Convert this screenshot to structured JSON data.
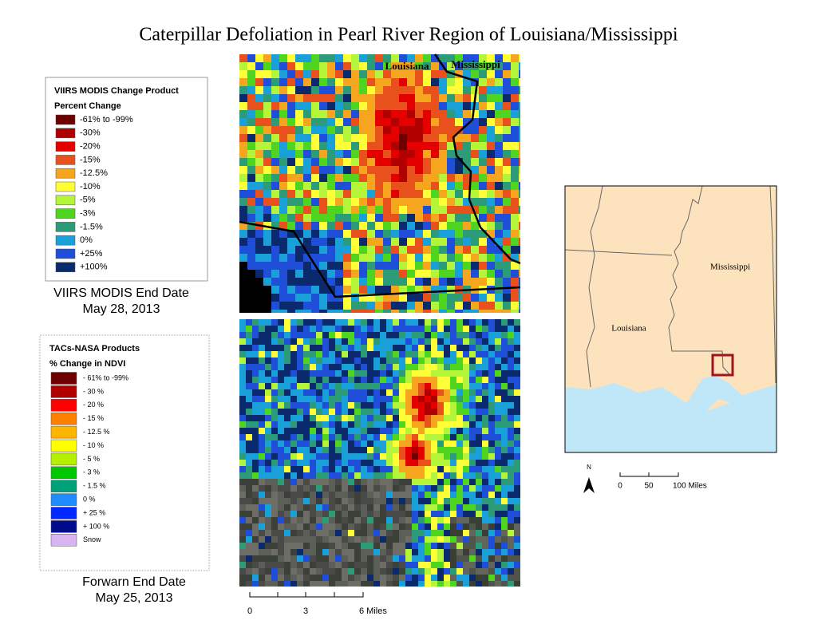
{
  "title": "Caterpillar Defoliation in Pearl River Region of Louisiana/Mississippi",
  "legend_viirs": {
    "title": "VIIRS MODIS Change Product",
    "subtitle": "Percent Change",
    "items": [
      {
        "label": "-61% to -99%",
        "color": "#6e0000"
      },
      {
        "label": "-30%",
        "color": "#b00000"
      },
      {
        "label": "-20%",
        "color": "#e50000"
      },
      {
        "label": "-15%",
        "color": "#e8501c"
      },
      {
        "label": "-12.5%",
        "color": "#f5a51e"
      },
      {
        "label": "-10%",
        "color": "#ffff38"
      },
      {
        "label": "-5%",
        "color": "#b4f53a"
      },
      {
        "label": "-3%",
        "color": "#4fd41f"
      },
      {
        "label": "-1.5%",
        "color": "#2c9c78"
      },
      {
        "label": "0%",
        "color": "#1aa0d8"
      },
      {
        "label": "+25%",
        "color": "#1f4fd8"
      },
      {
        "label": "+100%",
        "color": "#0b2a6e"
      }
    ]
  },
  "caption_viirs": [
    "VIIRS MODIS End Date",
    "May 28, 2013"
  ],
  "map_viirs": {
    "labels": [
      "Louisiana",
      "Mississippi"
    ]
  },
  "legend_forwarn": {
    "title": "TACs-NASA Products",
    "subtitle": "% Change in NDVI",
    "items": [
      {
        "label": "- 61% to -99%",
        "color": "#6e0000"
      },
      {
        "label": "- 30 %",
        "color": "#b00000"
      },
      {
        "label": "- 20 %",
        "color": "#ff0000"
      },
      {
        "label": "- 15 %",
        "color": "#ff8000"
      },
      {
        "label": "- 12.5 %",
        "color": "#ffb400"
      },
      {
        "label": "- 10 %",
        "color": "#ffff00"
      },
      {
        "label": "- 5 %",
        "color": "#b4f000"
      },
      {
        "label": "- 3 %",
        "color": "#00c800"
      },
      {
        "label": "- 1.5 %",
        "color": "#00a078"
      },
      {
        "label": "0 %",
        "color": "#1e8cff"
      },
      {
        "label": "+ 25 %",
        "color": "#0028ff"
      },
      {
        "label": "+ 100 %",
        "color": "#000a8c"
      },
      {
        "label": "Snow",
        "color": "#d8b4f0"
      }
    ]
  },
  "caption_forwarn": [
    "Forwarn End Date",
    "May 25, 2013"
  ],
  "scale_bar": {
    "labels": [
      "0",
      "3",
      "6 Miles"
    ]
  },
  "locator_map": {
    "labels": [
      "Louisiana",
      "Mississippi"
    ],
    "north": "N",
    "scale": [
      "0",
      "50",
      "100 Miles"
    ]
  }
}
